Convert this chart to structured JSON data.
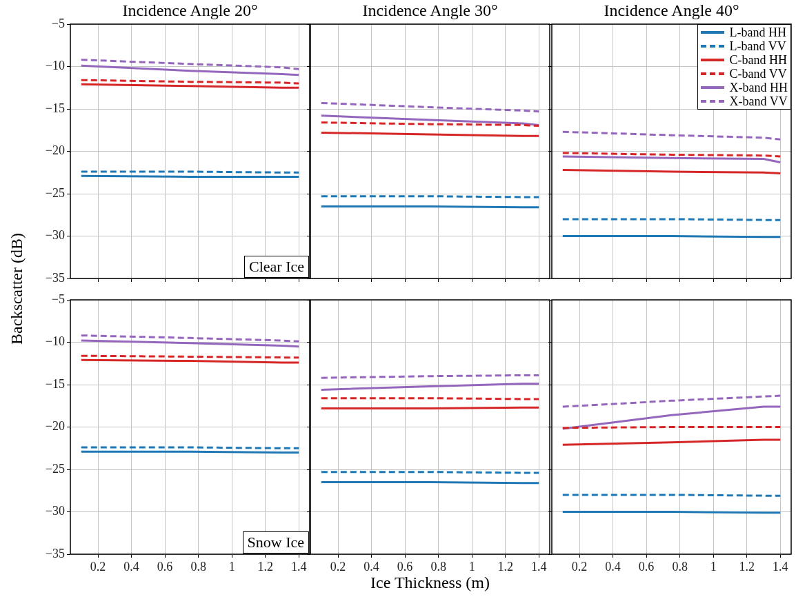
{
  "chart_data": [
    {
      "type": "line",
      "title": "Incidence Angle 20°",
      "ylabel": "Backscatter (dB)",
      "annotations": [
        "Clear Ice"
      ],
      "x": [
        0.1,
        0.75,
        1.3,
        1.4
      ],
      "xlim": [
        0.035,
        1.465
      ],
      "xticks": [
        0.2,
        0.4,
        0.6,
        0.8,
        1.0,
        1.2,
        1.4
      ],
      "ylim": [
        -35,
        -5
      ],
      "yticks": [
        {
          "value": -35,
          "label": "−35"
        },
        {
          "value": -30,
          "label": "−30"
        },
        {
          "value": -25,
          "label": "−25"
        },
        {
          "value": -20,
          "label": "−20"
        },
        {
          "value": -15,
          "label": "−15"
        },
        {
          "value": -10,
          "label": "−10"
        },
        {
          "value": -5,
          "label": "−5"
        }
      ],
      "grid": true,
      "legend": false,
      "tick_labels": "y",
      "series": [
        {
          "color": "#1f77b4",
          "line_style": "solid",
          "values": [
            -22.9,
            -23.0,
            -23.0,
            -23.0
          ]
        },
        {
          "color": "#1f77b4",
          "line_style": "dashed",
          "values": [
            -22.4,
            -22.4,
            -22.5,
            -22.5
          ]
        },
        {
          "color": "#d62728",
          "line_style": "solid",
          "values": [
            -12.1,
            -12.3,
            -12.5,
            -12.5
          ]
        },
        {
          "color": "#d62728",
          "line_style": "dashed",
          "values": [
            -11.6,
            -11.8,
            -11.9,
            -12.0
          ]
        },
        {
          "color": "#9467bd",
          "line_style": "solid",
          "values": [
            -9.9,
            -10.5,
            -10.9,
            -11.0
          ]
        },
        {
          "color": "#9467bd",
          "line_style": "dashed",
          "values": [
            -9.2,
            -9.7,
            -10.1,
            -10.3
          ]
        }
      ]
    },
    {
      "type": "line",
      "title": "Incidence Angle 30°",
      "x": [
        0.1,
        0.75,
        1.3,
        1.4
      ],
      "xlim": [
        0.035,
        1.465
      ],
      "xticks": [
        0.2,
        0.4,
        0.6,
        0.8,
        1.0,
        1.2,
        1.4
      ],
      "ylim": [
        -35,
        -5
      ],
      "yticks": [
        -35,
        -30,
        -25,
        -20,
        -15,
        -10,
        -5
      ],
      "grid": true,
      "legend": false,
      "tick_labels": false,
      "series": [
        {
          "color": "#1f77b4",
          "line_style": "solid",
          "values": [
            -26.5,
            -26.5,
            -26.6,
            -26.6
          ]
        },
        {
          "color": "#1f77b4",
          "line_style": "dashed",
          "values": [
            -25.3,
            -25.3,
            -25.4,
            -25.4
          ]
        },
        {
          "color": "#d62728",
          "line_style": "solid",
          "values": [
            -17.8,
            -18.0,
            -18.2,
            -18.2
          ]
        },
        {
          "color": "#d62728",
          "line_style": "dashed",
          "values": [
            -16.6,
            -16.8,
            -16.9,
            -17.0
          ]
        },
        {
          "color": "#9467bd",
          "line_style": "solid",
          "values": [
            -15.8,
            -16.3,
            -16.7,
            -16.9
          ]
        },
        {
          "color": "#9467bd",
          "line_style": "dashed",
          "values": [
            -14.3,
            -14.8,
            -15.2,
            -15.3
          ]
        }
      ]
    },
    {
      "type": "line",
      "title": "Incidence Angle 40°",
      "x": [
        0.1,
        0.75,
        1.3,
        1.4
      ],
      "xlim": [
        0.035,
        1.465
      ],
      "xticks": [
        0.2,
        0.4,
        0.6,
        0.8,
        1.0,
        1.2,
        1.4
      ],
      "ylim": [
        -35,
        -5
      ],
      "yticks": [
        -35,
        -30,
        -25,
        -20,
        -15,
        -10,
        -5
      ],
      "grid": true,
      "legend": "top right",
      "tick_labels": false,
      "series": [
        {
          "name": "L-band HH",
          "color": "#1f77b4",
          "line_style": "solid",
          "values": [
            -30.0,
            -30.0,
            -30.1,
            -30.1
          ]
        },
        {
          "name": "L-band VV",
          "color": "#1f77b4",
          "line_style": "dashed",
          "values": [
            -28.0,
            -28.0,
            -28.1,
            -28.1
          ]
        },
        {
          "name": "C-band HH",
          "color": "#d62728",
          "line_style": "solid",
          "values": [
            -22.2,
            -22.4,
            -22.5,
            -22.6
          ]
        },
        {
          "name": "C-band VV",
          "color": "#d62728",
          "line_style": "dashed",
          "values": [
            -20.2,
            -20.4,
            -20.5,
            -20.6
          ]
        },
        {
          "name": "X-band HH",
          "color": "#9467bd",
          "line_style": "solid",
          "values": [
            -20.6,
            -20.8,
            -20.9,
            -21.3
          ]
        },
        {
          "name": "X-band VV",
          "color": "#9467bd",
          "line_style": "dashed",
          "values": [
            -17.7,
            -18.1,
            -18.4,
            -18.6
          ]
        }
      ]
    },
    {
      "type": "line",
      "annotations": [
        "Snow Ice"
      ],
      "x": [
        0.1,
        0.75,
        1.3,
        1.4
      ],
      "xlim": [
        0.035,
        1.465
      ],
      "xticks": [
        0.2,
        0.4,
        0.6,
        0.8,
        1.0,
        1.2,
        1.4
      ],
      "ylim": [
        -35,
        -5
      ],
      "yticks": [
        {
          "value": -35,
          "label": "−35"
        },
        {
          "value": -30,
          "label": "−30"
        },
        {
          "value": -25,
          "label": "−25"
        },
        {
          "value": -20,
          "label": "−20"
        },
        {
          "value": -15,
          "label": "−15"
        },
        {
          "value": -10,
          "label": "−10"
        },
        {
          "value": -5,
          "label": "−5"
        }
      ],
      "grid": true,
      "legend": false,
      "series": [
        {
          "color": "#1f77b4",
          "line_style": "solid",
          "values": [
            -22.9,
            -22.9,
            -23.0,
            -23.0
          ]
        },
        {
          "color": "#1f77b4",
          "line_style": "dashed",
          "values": [
            -22.4,
            -22.4,
            -22.5,
            -22.5
          ]
        },
        {
          "color": "#d62728",
          "line_style": "solid",
          "values": [
            -12.1,
            -12.2,
            -12.4,
            -12.4
          ]
        },
        {
          "color": "#d62728",
          "line_style": "dashed",
          "values": [
            -11.6,
            -11.7,
            -11.8,
            -11.8
          ]
        },
        {
          "color": "#9467bd",
          "line_style": "solid",
          "values": [
            -9.8,
            -10.1,
            -10.4,
            -10.5
          ]
        },
        {
          "color": "#9467bd",
          "line_style": "dashed",
          "values": [
            -9.2,
            -9.5,
            -9.8,
            -9.9
          ]
        }
      ]
    },
    {
      "type": "line",
      "xlabel": "Ice Thickness (m)",
      "x": [
        0.1,
        0.75,
        1.3,
        1.4
      ],
      "xlim": [
        0.035,
        1.465
      ],
      "xticks": [
        0.2,
        0.4,
        0.6,
        0.8,
        1.0,
        1.2,
        1.4
      ],
      "ylim": [
        -35,
        -5
      ],
      "yticks": [
        -35,
        -30,
        -25,
        -20,
        -15,
        -10,
        -5
      ],
      "grid": true,
      "legend": false,
      "tick_labels": "x",
      "series": [
        {
          "color": "#1f77b4",
          "line_style": "solid",
          "values": [
            -26.5,
            -26.5,
            -26.6,
            -26.6
          ]
        },
        {
          "color": "#1f77b4",
          "line_style": "dashed",
          "values": [
            -25.3,
            -25.3,
            -25.4,
            -25.4
          ]
        },
        {
          "color": "#d62728",
          "line_style": "solid",
          "values": [
            -17.8,
            -17.8,
            -17.7,
            -17.7
          ]
        },
        {
          "color": "#d62728",
          "line_style": "dashed",
          "values": [
            -16.6,
            -16.6,
            -16.7,
            -16.7
          ]
        },
        {
          "color": "#9467bd",
          "line_style": "solid",
          "values": [
            -15.6,
            -15.2,
            -14.9,
            -14.9
          ]
        },
        {
          "color": "#9467bd",
          "line_style": "dashed",
          "values": [
            -14.2,
            -14.0,
            -13.9,
            -13.9
          ]
        }
      ]
    },
    {
      "type": "line",
      "x": [
        0.1,
        0.75,
        1.3,
        1.4
      ],
      "xlim": [
        0.035,
        1.465
      ],
      "xticks": [
        0.2,
        0.4,
        0.6,
        0.8,
        1.0,
        1.2,
        1.4
      ],
      "ylim": [
        -35,
        -5
      ],
      "yticks": [
        -35,
        -30,
        -25,
        -20,
        -15,
        -10,
        -5
      ],
      "grid": true,
      "legend": false,
      "tick_labels": "x",
      "series": [
        {
          "color": "#1f77b4",
          "line_style": "solid",
          "values": [
            -30.0,
            -30.0,
            -30.1,
            -30.1
          ]
        },
        {
          "color": "#1f77b4",
          "line_style": "dashed",
          "values": [
            -28.0,
            -28.0,
            -28.1,
            -28.1
          ]
        },
        {
          "color": "#d62728",
          "line_style": "solid",
          "values": [
            -22.1,
            -21.8,
            -21.5,
            -21.5
          ]
        },
        {
          "color": "#d62728",
          "line_style": "dashed",
          "values": [
            -20.1,
            -20.0,
            -20.0,
            -20.0
          ]
        },
        {
          "color": "#9467bd",
          "line_style": "solid",
          "values": [
            -20.2,
            -18.6,
            -17.6,
            -17.6
          ]
        },
        {
          "color": "#9467bd",
          "line_style": "dashed",
          "values": [
            -17.6,
            -16.9,
            -16.4,
            -16.3
          ]
        }
      ]
    }
  ]
}
